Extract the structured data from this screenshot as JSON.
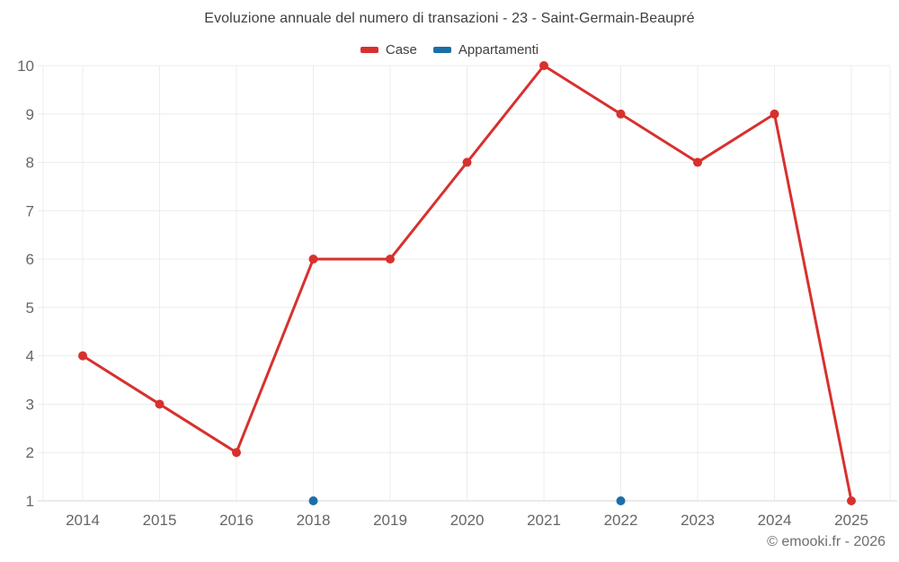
{
  "chart_data": {
    "type": "line",
    "title": "Evoluzione annuale del numero di transazioni - 23 - Saint-Germain-Beaupré",
    "categories": [
      "2014",
      "2015",
      "2016",
      "2018",
      "2019",
      "2020",
      "2021",
      "2022",
      "2023",
      "2024",
      "2025"
    ],
    "series": [
      {
        "name": "Case",
        "color": "#d7312e",
        "values": [
          4,
          3,
          2,
          6,
          6,
          8,
          10,
          9,
          8,
          9,
          1
        ],
        "draw_line": true
      },
      {
        "name": "Appartamenti",
        "color": "#1b6fa8",
        "values": [
          null,
          null,
          null,
          1,
          null,
          null,
          null,
          1,
          null,
          null,
          null
        ],
        "draw_line": true
      }
    ],
    "ylim": [
      1,
      10
    ],
    "yticks": [
      1,
      2,
      3,
      4,
      5,
      6,
      7,
      8,
      9,
      10
    ],
    "xlabel": "",
    "ylabel": "",
    "grid": true,
    "legend_position": "top",
    "colors": {
      "grid_line": "#ececec",
      "axis_line": "#d6d6d6",
      "tick_label": "#666666",
      "title_text": "#3f3f3f"
    }
  },
  "watermark": "© emooki.fr - 2026"
}
